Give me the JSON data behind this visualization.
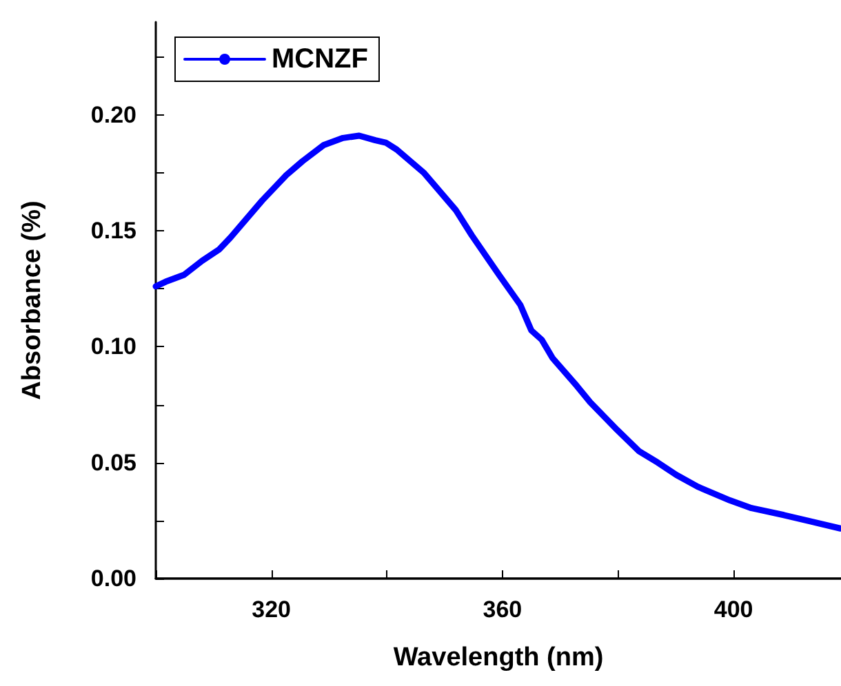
{
  "chart_data": {
    "type": "line",
    "xlabel": "Wavelength (nm)",
    "ylabel": "Absorbance (%)",
    "xlim": [
      300,
      418.6
    ],
    "xticks": [
      320,
      360,
      400
    ],
    "ylim": [
      0,
      0.24
    ],
    "yticks": [
      {
        "value": 0,
        "label": "0.00"
      },
      0.05,
      {
        "value": 0.1,
        "label": "0.10"
      },
      0.15,
      {
        "value": 0.2,
        "label": "0.20"
      }
    ],
    "grid": false,
    "legend": "top left",
    "marker": "none",
    "line_style": "solid",
    "series": [
      {
        "name": "MCNZF",
        "color": "#0000ff",
        "x": [
          300,
          301.7,
          304.9,
          308,
          311,
          312.9,
          318.4,
          322.6,
          325.4,
          329.1,
          332.4,
          335.2,
          338,
          339.8,
          341.7,
          346.4,
          351.9,
          354.7,
          359.4,
          363.1,
          365,
          366.8,
          368.7,
          372.9,
          375.2,
          379.9,
          383.6,
          386.9,
          390.1,
          393.8,
          399.4,
          403.1,
          408.7,
          413.4,
          418.5
        ],
        "values": [
          0.126,
          0.128,
          0.131,
          0.137,
          0.142,
          0.147,
          0.163,
          0.174,
          0.18,
          0.187,
          0.19,
          0.191,
          0.189,
          0.188,
          0.185,
          0.175,
          0.159,
          0.148,
          0.131,
          0.118,
          0.107,
          0.103,
          0.095,
          0.083,
          0.076,
          0.064,
          0.055,
          0.05,
          0.0447,
          0.0396,
          0.0337,
          0.0304,
          0.0274,
          0.0246,
          0.0216
        ]
      }
    ]
  }
}
